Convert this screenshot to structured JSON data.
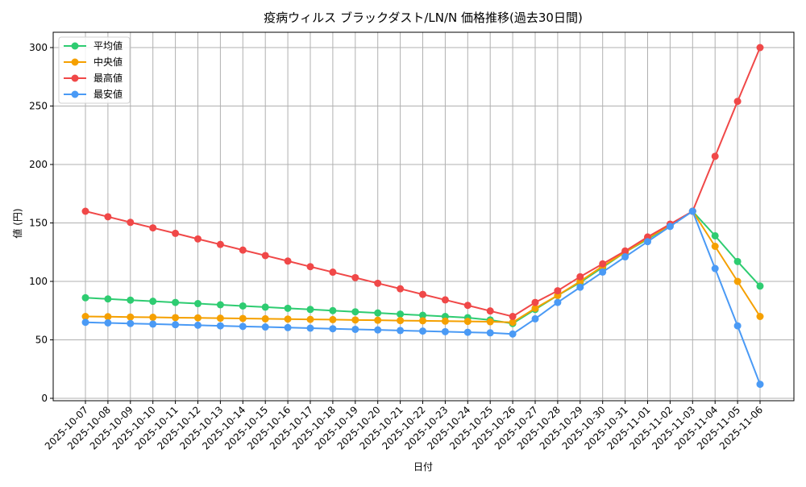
{
  "chart_data": {
    "type": "line",
    "title": "疫病ウィルス ブラックダスト/LN/N 価格推移(過去30日間)",
    "xlabel": "日付",
    "ylabel": "値 (円)",
    "ylim": [
      0,
      315
    ],
    "yticks": [
      0,
      50,
      100,
      150,
      200,
      250,
      300
    ],
    "grid": true,
    "legend_position": "upper left",
    "categories": [
      "2025-10-07",
      "2025-10-08",
      "2025-10-09",
      "2025-10-10",
      "2025-10-11",
      "2025-10-12",
      "2025-10-13",
      "2025-10-14",
      "2025-10-15",
      "2025-10-16",
      "2025-10-17",
      "2025-10-18",
      "2025-10-19",
      "2025-10-20",
      "2025-10-21",
      "2025-10-22",
      "2025-10-23",
      "2025-10-24",
      "2025-10-25",
      "2025-10-26",
      "2025-10-27",
      "2025-10-28",
      "2025-10-29",
      "2025-10-30",
      "2025-10-31",
      "2025-11-01",
      "2025-11-02",
      "2025-11-03",
      "2025-11-04",
      "2025-11-05",
      "2025-11-06"
    ],
    "series": [
      {
        "name": "平均値",
        "color": "#2ecc71",
        "values": [
          86,
          85,
          84,
          83,
          82,
          81,
          80,
          79,
          78,
          77,
          76,
          75,
          74,
          73,
          72,
          71,
          70,
          69,
          67,
          64,
          76,
          88,
          99,
          112,
          125,
          136,
          148,
          160,
          139,
          117,
          96
        ]
      },
      {
        "name": "中央値",
        "color": "#f5a000",
        "values": [
          70,
          69.8,
          69.5,
          69.3,
          69,
          68.8,
          68.5,
          68.3,
          68,
          67.8,
          67.5,
          67.3,
          67,
          66.8,
          66.5,
          66.3,
          66,
          65.8,
          65.5,
          65,
          77,
          88,
          100,
          113,
          125,
          137,
          148,
          160,
          130,
          100,
          70
        ]
      },
      {
        "name": "最高値",
        "color": "#f04848",
        "values": [
          160,
          155.3,
          150.5,
          145.8,
          141.1,
          136.3,
          131.6,
          126.8,
          122.1,
          117.4,
          112.6,
          107.9,
          103.2,
          98.4,
          93.7,
          88.9,
          84.2,
          79.5,
          74.7,
          70,
          82,
          92,
          104,
          115,
          126,
          138,
          149,
          160,
          207,
          254,
          300
        ]
      },
      {
        "name": "最安値",
        "color": "#4a9af5",
        "values": [
          65,
          64.5,
          64,
          63.5,
          63,
          62.5,
          62,
          61.5,
          61,
          60.5,
          60,
          59.5,
          59,
          58.5,
          58,
          57.5,
          57,
          56.5,
          56,
          55,
          68,
          82,
          95,
          108,
          121,
          134,
          147,
          160,
          111,
          62,
          12
        ]
      }
    ]
  }
}
